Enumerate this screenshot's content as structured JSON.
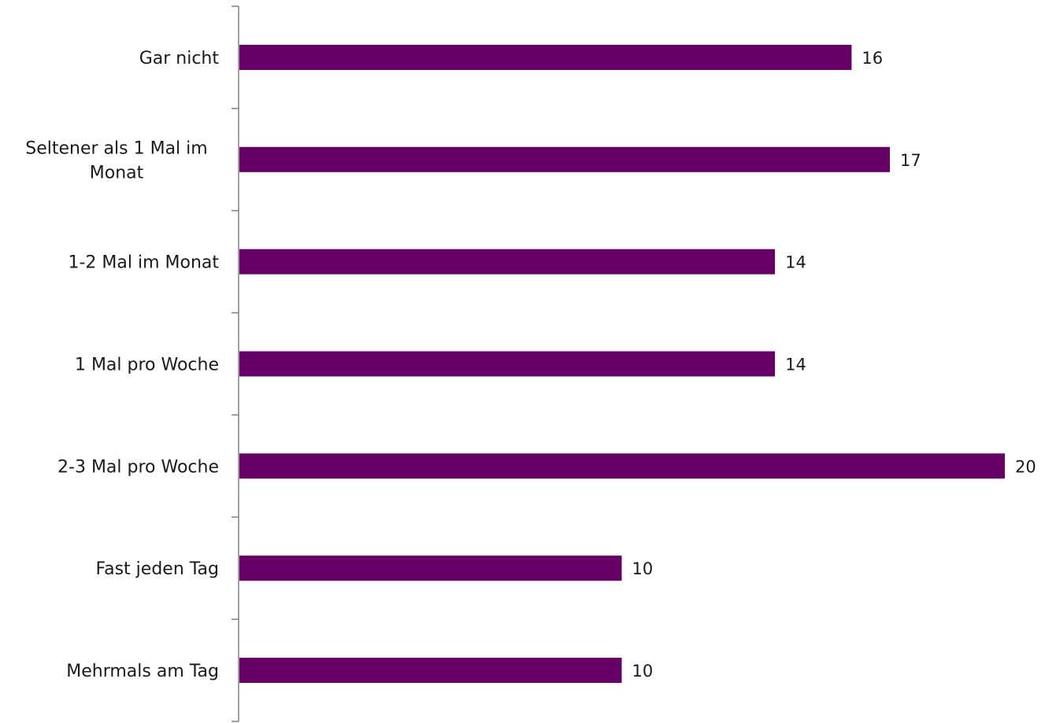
{
  "chart_data": {
    "type": "bar",
    "orientation": "horizontal",
    "categories": [
      [
        "Gar nicht"
      ],
      [
        "Seltener als 1 Mal im",
        "Monat"
      ],
      [
        "1-2 Mal im Monat"
      ],
      [
        "1 Mal pro Woche"
      ],
      [
        "2-3 Mal pro Woche"
      ],
      [
        "Fast jeden Tag"
      ],
      [
        "Mehrmals am Tag"
      ]
    ],
    "values": [
      16,
      17,
      14,
      14,
      20,
      10,
      10
    ],
    "title": "",
    "xlabel": "",
    "ylabel": "",
    "xlim": [
      0,
      20
    ],
    "grid": false,
    "legend": "none",
    "data_labels": true,
    "bar_color": "#660066"
  }
}
